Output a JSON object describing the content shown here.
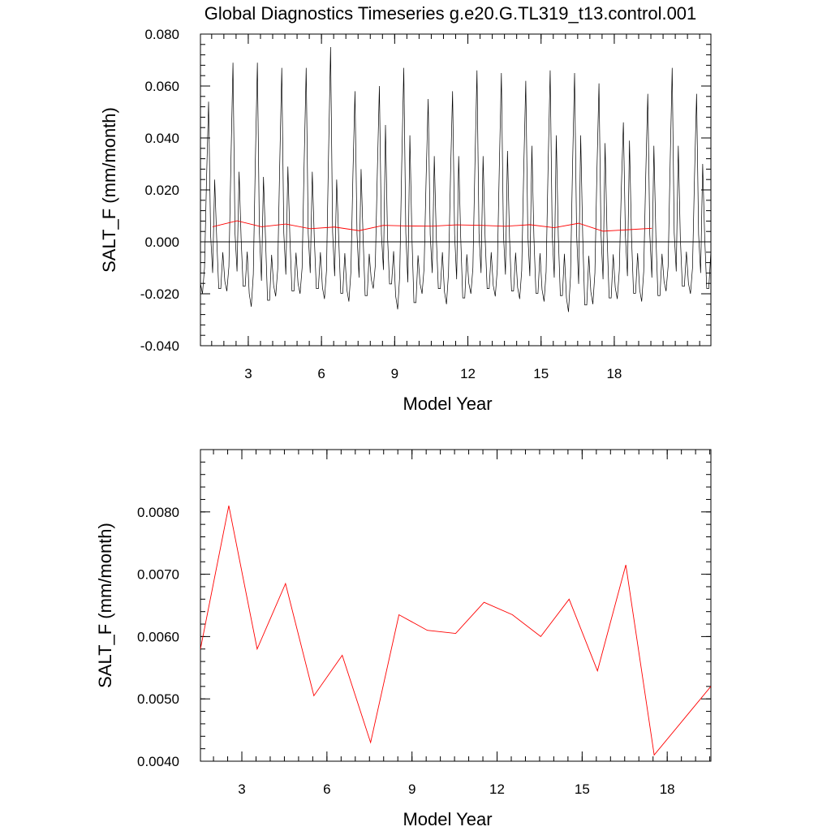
{
  "title": "Global Diagnostics Timeseries g.e20.G.TL319_t13.control.001",
  "colors": {
    "monthly": "#000000",
    "annual": "#ff0000",
    "axis": "#000000",
    "background": "#ffffff"
  },
  "chart_data": [
    {
      "type": "line",
      "name": "top-panel",
      "xlabel": "Model Year",
      "ylabel": "SALT_F (mm/month)",
      "xlim": [
        1.04,
        21.96
      ],
      "ylim": [
        -0.04,
        0.08
      ],
      "xticks": [
        3,
        6,
        9,
        12,
        15,
        18
      ],
      "xtick_labels": [
        "3",
        "6",
        "9",
        "12",
        "15",
        "18"
      ],
      "yticks": [
        -0.04,
        -0.02,
        0.0,
        0.02,
        0.04,
        0.06,
        0.08
      ],
      "ytick_labels": [
        "-0.040",
        "-0.020",
        "0.000",
        "0.020",
        "0.040",
        "0.060",
        "0.080"
      ],
      "zero_line": 0,
      "series": [
        {
          "key": "monthly",
          "x_start": 1.04,
          "x_step": 0.083333,
          "month_pattern_A": [
            -0.016,
            -0.02,
            -0.01,
            0.025,
            0.054,
            0.0,
            -0.012,
            0.024,
            0.0,
            -0.018,
            -0.018,
            0.0
          ],
          "year_peaks": [
            0.054,
            0.069,
            0.069,
            0.067,
            0.067,
            0.075,
            0.058,
            0.06,
            0.067,
            0.055,
            0.058,
            0.066,
            0.065,
            0.062,
            0.066,
            0.065,
            0.061,
            0.046,
            0.057,
            0.067,
            0.057
          ],
          "year_secondary": [
            0.024,
            0.027,
            0.025,
            0.029,
            0.027,
            0.024,
            0.028,
            0.045,
            0.041,
            0.033,
            0.033,
            0.033,
            0.035,
            0.037,
            0.041,
            0.041,
            0.038,
            0.039,
            0.037,
            0.037,
            0.03
          ],
          "year_trough": [
            -0.02,
            -0.019,
            -0.025,
            -0.021,
            -0.02,
            -0.022,
            -0.023,
            -0.018,
            -0.026,
            -0.02,
            -0.024,
            -0.02,
            -0.021,
            -0.022,
            -0.023,
            -0.027,
            -0.024,
            -0.022,
            -0.023,
            -0.019,
            -0.02
          ]
        },
        {
          "key": "annual",
          "x": [
            1.54,
            2.54,
            3.54,
            4.54,
            5.54,
            6.54,
            7.54,
            8.54,
            9.54,
            10.54,
            11.54,
            12.54,
            13.54,
            14.54,
            15.54,
            16.54,
            17.54,
            18.54,
            19.54
          ],
          "y": [
            0.0058,
            0.0081,
            0.0058,
            0.00685,
            0.00505,
            0.0057,
            0.0043,
            0.00635,
            0.0061,
            0.00605,
            0.00655,
            0.00635,
            0.006,
            0.0066,
            0.00545,
            0.00715,
            0.0041,
            0.00465,
            0.0052
          ]
        }
      ]
    },
    {
      "type": "line",
      "name": "bottom-panel",
      "xlabel": "Model Year",
      "ylabel": "SALT_F (mm/month)",
      "xlim": [
        1.54,
        19.54
      ],
      "ylim": [
        0.004,
        0.009
      ],
      "xticks": [
        3,
        6,
        9,
        12,
        15,
        18
      ],
      "xtick_labels": [
        "3",
        "6",
        "9",
        "12",
        "15",
        "18"
      ],
      "yticks": [
        0.004,
        0.005,
        0.006,
        0.007,
        0.008
      ],
      "ytick_labels": [
        "0.0040",
        "0.0050",
        "0.0060",
        "0.0070",
        "0.0080"
      ],
      "series": [
        {
          "key": "annual",
          "x": [
            1.54,
            2.54,
            3.54,
            4.54,
            5.54,
            6.54,
            7.54,
            8.54,
            9.54,
            10.54,
            11.54,
            12.54,
            13.54,
            14.54,
            15.54,
            16.54,
            17.54,
            18.54,
            19.54
          ],
          "y": [
            0.0058,
            0.0081,
            0.0058,
            0.00685,
            0.00505,
            0.0057,
            0.0043,
            0.00635,
            0.0061,
            0.00605,
            0.00655,
            0.00635,
            0.006,
            0.0066,
            0.00545,
            0.00715,
            0.0041,
            0.00465,
            0.0052
          ]
        }
      ]
    }
  ]
}
